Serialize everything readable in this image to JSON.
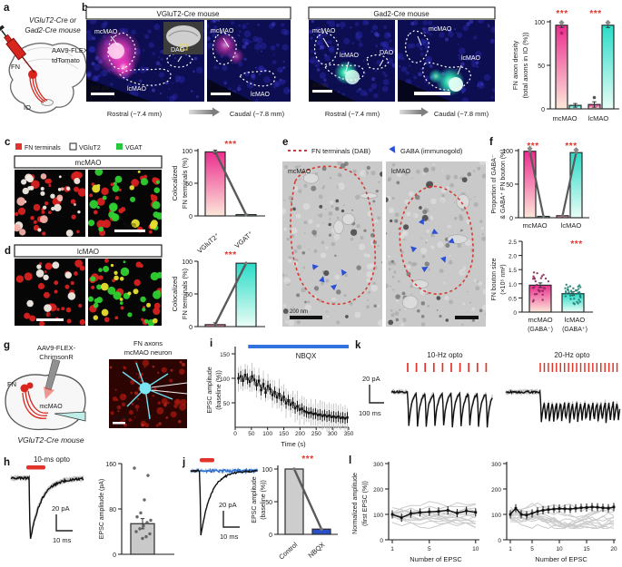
{
  "colors": {
    "magenta": "#ec2d8e",
    "magenta_light": "#fce8da",
    "teal": "#2adcc8",
    "teal_light": "#eafdf6",
    "red": "#e2342b",
    "blue": "#3173de",
    "blue_dark": "#2a50c8",
    "gray_bar": "#c9c9c9",
    "header_magenta": "#f0458f",
    "header_teal": "#2fd9c6",
    "green": "#27c840",
    "gold_blue": "#2b4fd7"
  },
  "a": {
    "label": "a",
    "title1": "VGluT2-Cre or",
    "title2": "Gad2-Cre mouse",
    "virus1": "AAV9-FLEX-",
    "virus2": "tdTomato",
    "fn": "FN",
    "io": "IO"
  },
  "b": {
    "label": "b",
    "groups": [
      {
        "header": "VGluT2-Cre mouse",
        "rostral": "Rostral (−7.4 mm)",
        "caudal": "Caudal (−7.8 mm)"
      },
      {
        "header": "Gad2-Cre mouse",
        "rostral": "Rostral (−7.4 mm)",
        "caudal": "Caudal (−7.8 mm)"
      }
    ],
    "img_labels": {
      "mcmao": "mcMAO",
      "lcmao": "lcMAO",
      "dao": "DAO",
      "scale": "300 µm"
    },
    "chart": {
      "type": "bar",
      "ylabel1": "FN axon density",
      "ylabel2": "(total axons in IO (%))",
      "yticks": [
        "100",
        "50",
        "0"
      ],
      "categories": [
        "mcMAO",
        "lcMAO"
      ],
      "series": [
        {
          "name": "VGluT2-Cre",
          "values": [
            96,
            5
          ]
        },
        {
          "name": "Gad2-Cre",
          "values": [
            4,
            96
          ]
        }
      ],
      "sig": [
        "***",
        "***"
      ]
    }
  },
  "c": {
    "label": "c",
    "legend": [
      {
        "label": "FN terminals"
      },
      {
        "label": "VGluT2"
      },
      {
        "label": "VGAT"
      }
    ],
    "header": "mcMAO",
    "scale": "5 µm",
    "chart": {
      "type": "bar",
      "ylabel1": "Colocalized",
      "ylabel2": "FN terminals (%)",
      "yticks": [
        "100",
        "50",
        "0"
      ],
      "values": [
        98,
        2
      ],
      "sig": "***"
    }
  },
  "d": {
    "label": "d",
    "header": "lcMAO",
    "scale": "5 µm",
    "xlabels": [
      "VGluT2⁺",
      "VGAT⁺"
    ],
    "chart": {
      "type": "bar",
      "ylabel1": "Colocalized",
      "ylabel2": "FN terminals (%)",
      "yticks": [
        "100",
        "50",
        "0"
      ],
      "values": [
        3,
        97
      ],
      "sig": "***"
    }
  },
  "e": {
    "label": "e",
    "legend_fn": "FN terminals (DAB)",
    "legend_gaba": "GABA (immunogold)",
    "img1_label": "mcMAO",
    "img2_label": "lcMAO",
    "scale": "200 nm"
  },
  "f": {
    "label": "f",
    "chart1": {
      "type": "bar",
      "ylabel1": "Proportion of GABA⁻",
      "ylabel2": "& GABA⁺ FN bouton (%)",
      "yticks": [
        "100",
        "50",
        "0"
      ],
      "categories": [
        "mcMAO",
        "lcMAO"
      ],
      "series": [
        {
          "name": "GABA⁻",
          "values": [
            99,
            3
          ]
        },
        {
          "name": "GABA⁺",
          "values": [
            2,
            97
          ]
        }
      ],
      "sig": [
        "***",
        "***"
      ]
    },
    "chart2": {
      "type": "bar",
      "ylabel1": "FN bouton size",
      "ylabel2": "(×10⁵ nm²)",
      "yticks": [
        "2.5",
        "2.0",
        "1.5",
        "1.0",
        "0.5",
        "0"
      ],
      "categories": [
        "mcMAO",
        "lcMAO"
      ],
      "subcats": [
        "(GABA⁻)",
        "(GABA⁺)"
      ],
      "values": [
        0.95,
        0.65
      ],
      "sig": "***"
    }
  },
  "g": {
    "label": "g",
    "virus1": "AAV9-FLEX-",
    "virus2": "ChrimsonR",
    "fn": "FN",
    "mcmao": "mcMAO",
    "mouse": "VGluT2-Cre mouse",
    "img_label1": "FN axons",
    "img_label2": "mcMAO neuron",
    "scale": "10 µm"
  },
  "h": {
    "label": "h",
    "opto": "10-ms opto",
    "scale_v": "20 pA",
    "scale_h": "10 ms",
    "chart": {
      "type": "bar",
      "ylabel": "EPSC amplitude (pA)",
      "yticks": [
        "160",
        "80",
        "0"
      ],
      "bar": 54,
      "err": 9,
      "dots": [
        152,
        139,
        96,
        73,
        66,
        60,
        56,
        50,
        45,
        40,
        36,
        31,
        28
      ]
    }
  },
  "i": {
    "label": "i",
    "drug": "NBQX",
    "ylabel1": "EPSC amplitude",
    "ylabel2": "(baseline (%))",
    "yticks": [
      "150",
      "100",
      "50"
    ],
    "xticks": [
      "0",
      "50",
      "100",
      "150",
      "200",
      "250",
      "300",
      "350"
    ],
    "xlabel": "Time (s)",
    "chart_points": [
      [
        10,
        100
      ],
      [
        17,
        104
      ],
      [
        24,
        95
      ],
      [
        31,
        107
      ],
      [
        38,
        99
      ],
      [
        45,
        93
      ],
      [
        52,
        104
      ],
      [
        59,
        97
      ],
      [
        66,
        86
      ],
      [
        73,
        95
      ],
      [
        80,
        76
      ],
      [
        87,
        88
      ],
      [
        94,
        71
      ],
      [
        101,
        84
      ],
      [
        108,
        78
      ],
      [
        115,
        66
      ],
      [
        122,
        72
      ],
      [
        129,
        61
      ],
      [
        136,
        68
      ],
      [
        143,
        56
      ],
      [
        150,
        62
      ],
      [
        157,
        49
      ],
      [
        164,
        55
      ],
      [
        171,
        46
      ],
      [
        178,
        50
      ],
      [
        185,
        39
      ],
      [
        192,
        43
      ],
      [
        199,
        36
      ],
      [
        206,
        38
      ],
      [
        213,
        33
      ],
      [
        220,
        31
      ],
      [
        227,
        29
      ],
      [
        234,
        30
      ],
      [
        241,
        27
      ],
      [
        248,
        28
      ],
      [
        255,
        25
      ],
      [
        262,
        26
      ],
      [
        269,
        23
      ],
      [
        276,
        25
      ],
      [
        283,
        22
      ],
      [
        290,
        24
      ],
      [
        297,
        21
      ],
      [
        304,
        22
      ],
      [
        311,
        20
      ],
      [
        318,
        22
      ],
      [
        325,
        19
      ],
      [
        332,
        20
      ],
      [
        339,
        18
      ],
      [
        346,
        20
      ]
    ]
  },
  "j": {
    "label": "j",
    "scale_v": "20 pA",
    "scale_h": "10 ms",
    "chart": {
      "type": "bar",
      "ylabel1": "EPSC amplitude",
      "ylabel2": "(baseline (%))",
      "yticks": [
        "100",
        "50",
        "0"
      ],
      "categories": [
        "Control",
        "NBQX"
      ],
      "values": [
        100,
        8
      ],
      "sig": "***"
    }
  },
  "k": {
    "label": "k",
    "opto1": "10-Hz opto",
    "opto2": "20-Hz opto",
    "n1": 10,
    "n2": 20,
    "scale_v": "20 pA",
    "scale_h": "100 ms"
  },
  "l": {
    "label": "l",
    "ylabel1": "Normalized amplitude",
    "ylabel2": "(first EPSC (%))",
    "yticks": [
      "300",
      "200",
      "100",
      "0"
    ],
    "xlabel": "Number of EPSC",
    "plot1": {
      "type": "line",
      "xticks": [
        "1",
        "5",
        "10"
      ],
      "mean": [
        100,
        87,
        103,
        108,
        110,
        112,
        116,
        105,
        114,
        108
      ]
    },
    "plot2": {
      "type": "line",
      "xticks": [
        "1",
        "5",
        "10",
        "15",
        "20"
      ],
      "mean": [
        100,
        124,
        100,
        97,
        104,
        112,
        116,
        119,
        121,
        123,
        122,
        121,
        124,
        126,
        127,
        129,
        128,
        126,
        124,
        129
      ]
    }
  }
}
